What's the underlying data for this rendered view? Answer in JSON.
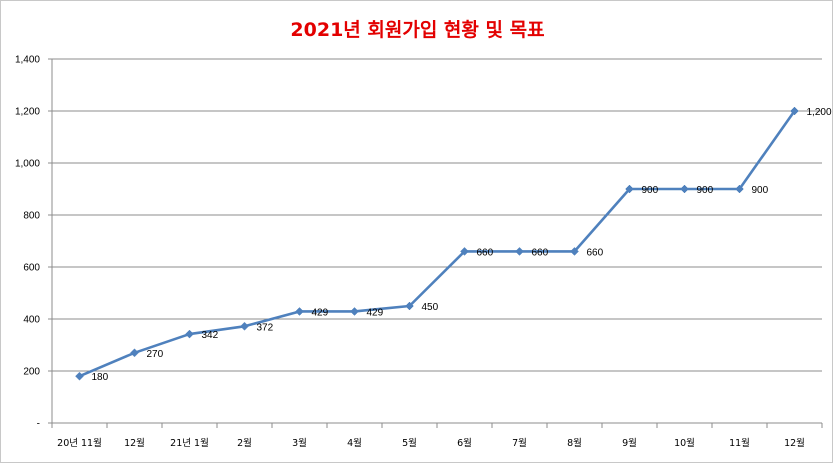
{
  "chart_data": {
    "type": "line",
    "title": "2021년 회원가입 현황 및 목표",
    "title_color": "#e30000",
    "line_color": "#4f81bd",
    "grid": true,
    "xlabel": "",
    "ylabel": "",
    "ylim": [
      0,
      1400
    ],
    "y_ticks": [
      "-",
      "200",
      "400",
      "600",
      "800",
      "1,000",
      "1,200",
      "1,400"
    ],
    "categories": [
      "20년 11월",
      "12월",
      "21년 1월",
      "2월",
      "3월",
      "4월",
      "5월",
      "6월",
      "7월",
      "8월",
      "9월",
      "10월",
      "11월",
      "12월"
    ],
    "series": [
      {
        "values": [
          180,
          270,
          342,
          372,
          429,
          429,
          450,
          660,
          660,
          660,
          900,
          900,
          900,
          1200
        ],
        "labels": [
          "180",
          "270",
          "342",
          "372",
          "429",
          "429",
          "450",
          "660",
          "660",
          "660",
          "900",
          "900",
          "900",
          "1,200"
        ]
      }
    ]
  }
}
